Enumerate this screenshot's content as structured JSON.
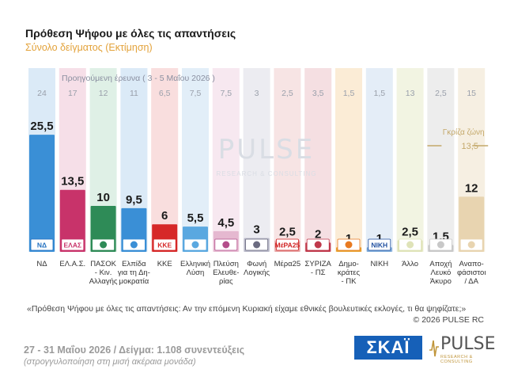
{
  "header": {
    "title": "Πρόθεση Ψήφου με όλες τις απαντήσεις",
    "subtitle": "Σύνολο δείγματος   (Εκτίμηση)"
  },
  "prev_survey_label": "Προηγούμενη έρευνα ( 3 - 5 Μαΐου 2026 )",
  "grey_zone_label": "Γκρίζα ζώνη",
  "watermark": {
    "line1": "PULSE",
    "line2": "RESEARCH & CONSULTING"
  },
  "chart_data": {
    "type": "bar",
    "categories": [
      "ΝΔ",
      "ΕΛ.Α.Σ.",
      "ΠΑΣΟΚ - Κιν. Αλλαγής",
      "Ελπίδα για τη Δημοκρατία",
      "ΚΚΕ",
      "Ελληνική Λύση",
      "Πλεύση Ελευθερίας",
      "Φωνή Λογικής",
      "Μέρα25",
      "ΣΥΡΙΖΑ - ΠΣ",
      "Δημοκράτες - ΠΚ",
      "ΝΙΚΗ",
      "Άλλο",
      "Αποχή Λευκό Άκυρο",
      "Αναποφάσιστοι / ΔΑ"
    ],
    "category_lines": [
      [
        "ΝΔ"
      ],
      [
        "ΕΛ.Α.Σ."
      ],
      [
        "ΠΑΣΟΚ",
        "- Κιν.",
        "Αλλαγής"
      ],
      [
        "Ελπίδα",
        "για τη Δη-",
        "μοκρατία"
      ],
      [
        "ΚΚΕ"
      ],
      [
        "Ελληνική",
        "Λύση"
      ],
      [
        "Πλεύση",
        "Ελευθε-",
        "ρίας"
      ],
      [
        "Φωνή",
        "Λογικής"
      ],
      [
        "Μέρα25"
      ],
      [
        "ΣΥΡΙΖΑ",
        "- ΠΣ"
      ],
      [
        "Δημο-",
        "κράτες",
        "- ΠΚ"
      ],
      [
        "ΝΙΚΗ"
      ],
      [
        "Άλλο"
      ],
      [
        "Αποχή",
        "Λευκό",
        "Άκυρο"
      ],
      [
        "Αναπο-",
        "φάσιστοι",
        "/ ΔΑ"
      ]
    ],
    "values": [
      25.5,
      13.5,
      10,
      9.5,
      6,
      5.5,
      4.5,
      3,
      2.5,
      2,
      1,
      1,
      2.5,
      1.5,
      12
    ],
    "value_labels": [
      "25,5",
      "13,5",
      "10",
      "9,5",
      "6",
      "5,5",
      "4,5",
      "3",
      "2,5",
      "2",
      "1",
      "1",
      "2,5",
      "1,5",
      "12"
    ],
    "previous_values": [
      "24",
      "17",
      "12",
      "11",
      "6,5",
      "7,5",
      "7,5",
      "3",
      "2,5",
      "3,5",
      "1,5",
      "1,5",
      "13",
      "2,5",
      "15"
    ],
    "grey_zone_value": "13,5",
    "ylim": [
      0,
      30
    ],
    "colors": [
      "#3a8fd6",
      "#c8336a",
      "#2e8b57",
      "#3a8fd6",
      "#d62828",
      "#5aa8e0",
      "#e5b8d0",
      "#b5b5c5",
      "#e6a0a0",
      "#c0394b",
      "#e8a030",
      "#7aa8d8",
      "#dfe3b8",
      "#c8c8c8",
      "#e8d4b0"
    ],
    "col_bg_colors": [
      "#dbeaf7",
      "#f6dfe8",
      "#dff0e6",
      "#dbeaf7",
      "#f9dede",
      "#e2eef8",
      "#f7e8f0",
      "#ececf1",
      "#f7e4e4",
      "#f5dfe2",
      "#fbecd6",
      "#e4edf7",
      "#f2f4e2",
      "#ededed",
      "#f6efe2"
    ],
    "logo_texts": [
      "ΝΔ",
      "ΕΛΑΣ",
      "",
      "",
      "ΚΚΕ",
      "",
      "",
      "",
      "ΜέΡΑ25",
      "",
      "",
      "ΝΙΚΗ",
      "",
      "",
      ""
    ],
    "logo_colors": [
      "#1f6fc0",
      "#c8336a",
      "#2e8b57",
      "#3a8fd6",
      "#d62828",
      "#5aa8e0",
      "#b34d8a",
      "#6b6b80",
      "#d02020",
      "#c0394b",
      "#e87a20",
      "#2050a0",
      "#dfe3b8",
      "#c8c8c8",
      "#e8d4b0"
    ]
  },
  "question_text": "«Πρόθεση Ψήφου με όλες τις απαντήσεις: Αν την επόμενη Κυριακή είχαμε εθνικές βουλευτικές εκλογές, τι θα ψηφίζατε;»",
  "copyright": "©  2026  PULSE RC",
  "footer": {
    "main": "27 - 31  Μαΐου 2026  /  Δείγμα:  1.108 συνεντεύξεις",
    "sub": "(στρογγυλοποίηση στη μισή ακέραια μονάδα)"
  },
  "logos": {
    "skai": "ΣΚΑΪ",
    "pulse": "PULSE",
    "pulse_sub": "RESEARCH & CONSULTING"
  }
}
